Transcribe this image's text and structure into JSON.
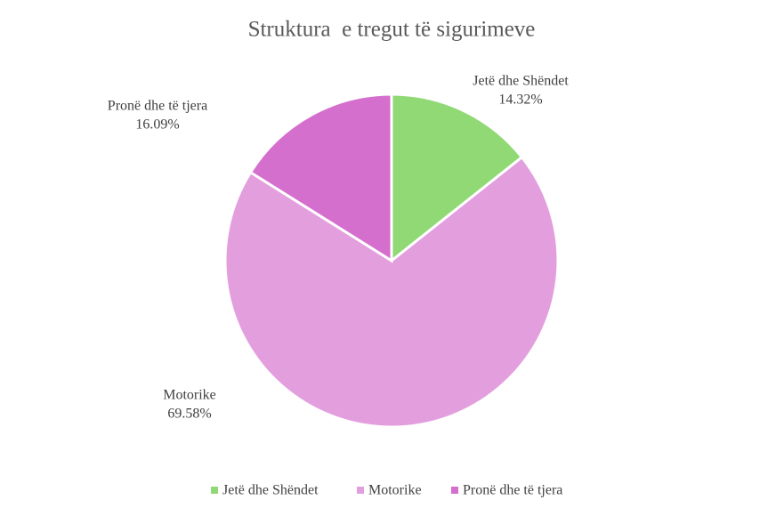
{
  "chart_data": {
    "type": "pie",
    "title": "Struktura  e tregut të sigurimeve",
    "categories": [
      "Jetë dhe Shëndet",
      "Motorike",
      "Pronë dhe të tjera"
    ],
    "values": [
      14.32,
      69.58,
      16.09
    ],
    "value_labels": [
      "14.32%",
      "69.58%",
      "16.09%"
    ],
    "colors": [
      "#90d974",
      "#e39ede",
      "#d56fce"
    ],
    "legend": "bottom"
  }
}
